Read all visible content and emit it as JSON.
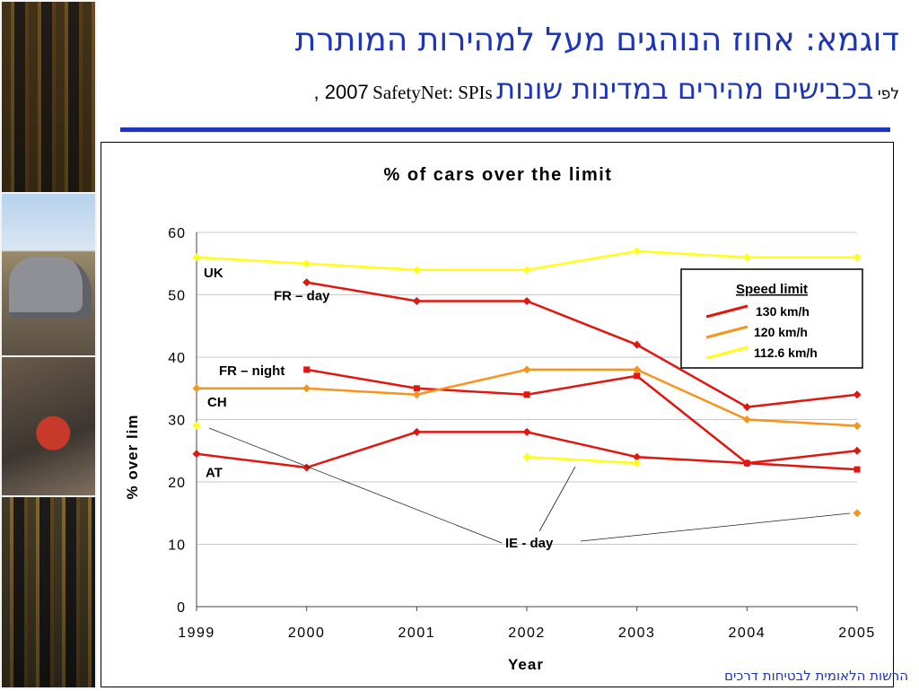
{
  "title": {
    "line1": "דוגמא: אחוז הנוהגים מעל למהירות המותרת",
    "line2_hebrew": "בכבישים מהירים במדינות שונות",
    "line2_small": "לפי",
    "line2_source": "SafetyNet: SPIs",
    "line2_year": ", 2007"
  },
  "footer": "הרשות הלאומית לבטיחות דרכים",
  "colors": {
    "title": "#1f35b8",
    "s130": "#e0160f",
    "s120": "#f7941d",
    "s112": "#ffff14"
  },
  "chart_data": {
    "type": "line",
    "title": "% of cars over the limit",
    "xlabel": "Year",
    "ylabel": "% over lim",
    "x": [
      1999,
      2000,
      2001,
      2002,
      2003,
      2004,
      2005
    ],
    "ylim": [
      0,
      60
    ],
    "yticks": [
      0,
      10,
      20,
      30,
      40,
      50,
      60
    ],
    "grid": true,
    "legend": {
      "title": "Speed limit",
      "placement": "top-right",
      "entries": [
        {
          "label": "130 km/h",
          "color": "#e0160f"
        },
        {
          "label": "120 km/h",
          "color": "#f7941d"
        },
        {
          "label": "112.6 km/h",
          "color": "#ffff14"
        }
      ]
    },
    "series": [
      {
        "name": "UK",
        "limit": "112.6 km/h",
        "color": "#ffff14",
        "marker": "diamond",
        "points": [
          [
            1999,
            56
          ],
          [
            2000,
            55
          ],
          [
            2001,
            54
          ],
          [
            2002,
            54
          ],
          [
            2003,
            57
          ],
          [
            2004,
            56
          ],
          [
            2005,
            56
          ]
        ]
      },
      {
        "name": "FR – day",
        "limit": "130 km/h",
        "color": "#e0160f",
        "marker": "diamond",
        "points": [
          [
            2000,
            52
          ],
          [
            2001,
            49
          ],
          [
            2002,
            49
          ],
          [
            2003,
            42
          ],
          [
            2004,
            32
          ],
          [
            2005,
            34
          ]
        ]
      },
      {
        "name": "FR – night",
        "limit": "130 km/h",
        "color": "#e0160f",
        "marker": "square",
        "points": [
          [
            2000,
            38
          ],
          [
            2001,
            35
          ],
          [
            2002,
            34
          ],
          [
            2003,
            37
          ],
          [
            2004,
            23
          ],
          [
            2005,
            22
          ]
        ]
      },
      {
        "name": "CH",
        "limit": "120 km/h",
        "color": "#f7941d",
        "marker": "diamond",
        "points": [
          [
            1999,
            35
          ],
          [
            2000,
            35
          ],
          [
            2001,
            34
          ],
          [
            2002,
            38
          ],
          [
            2003,
            38
          ],
          [
            2004,
            30
          ],
          [
            2005,
            29
          ]
        ]
      },
      {
        "name": "AT",
        "limit": "130 km/h",
        "color": "#e0160f",
        "marker": "diamond",
        "points": [
          [
            1999,
            24.5
          ],
          [
            2000,
            22.3
          ],
          [
            2001,
            28
          ],
          [
            2002,
            28
          ],
          [
            2003,
            24
          ],
          [
            2004,
            23
          ],
          [
            2005,
            25
          ]
        ]
      },
      {
        "name": "IE - day",
        "limit": "112.6 km/h",
        "color": "#ffff14",
        "marker": "diamond",
        "points": [
          [
            1999,
            29
          ],
          [
            2002,
            24
          ],
          [
            2003,
            23
          ]
        ]
      },
      {
        "name": "",
        "limit": "120 km/h",
        "color": "#f7941d",
        "marker": "diamond",
        "points": [
          [
            2005,
            15
          ]
        ]
      }
    ],
    "annotations": [
      "UK",
      "FR – day",
      "FR – night",
      "CH",
      "AT",
      "IE - day"
    ]
  }
}
